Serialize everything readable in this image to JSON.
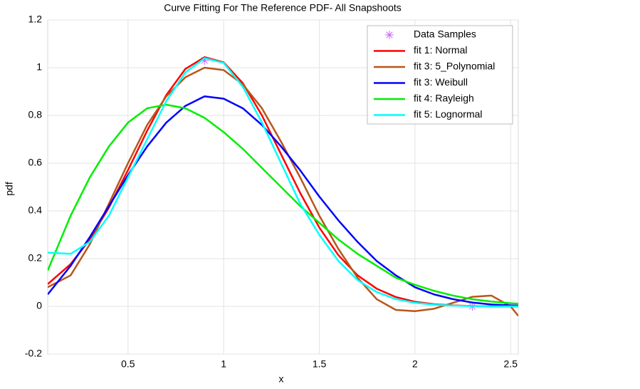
{
  "chart_data": {
    "type": "line",
    "title": "Curve Fitting For The Reference PDF- All Snapshoots",
    "xlabel": "x",
    "ylabel": "pdf",
    "xlim": [
      0.08,
      2.54
    ],
    "ylim": [
      -0.2,
      1.2
    ],
    "xticks": [
      0.5,
      1,
      1.5,
      2,
      2.5
    ],
    "yticks": [
      -0.2,
      0,
      0.2,
      0.4,
      0.6,
      0.8,
      1,
      1.2
    ],
    "grid": true,
    "legend": "upper right",
    "x": [
      0.08,
      0.2,
      0.3,
      0.4,
      0.5,
      0.6,
      0.7,
      0.8,
      0.9,
      1.0,
      1.1,
      1.2,
      1.3,
      1.4,
      1.5,
      1.6,
      1.7,
      1.8,
      1.9,
      2.0,
      2.1,
      2.2,
      2.3,
      2.4,
      2.5,
      2.54
    ],
    "series": [
      {
        "name": "Data Samples",
        "color": "#cc66ff",
        "style": "markers",
        "x": [
          0.9,
          2.3
        ],
        "values": [
          1.03,
          0.0
        ]
      },
      {
        "name": "fit 1: Normal",
        "color": "#ff0000",
        "values": [
          0.093,
          0.177,
          0.28,
          0.414,
          0.571,
          0.736,
          0.885,
          0.995,
          1.044,
          1.022,
          0.935,
          0.8,
          0.637,
          0.475,
          0.33,
          0.214,
          0.13,
          0.074,
          0.039,
          0.019,
          0.009,
          0.004,
          0.0015,
          0.0005,
          0,
          0
        ]
      },
      {
        "name": "fit 3: 5_Polynomial",
        "color": "#b8561b",
        "values": [
          0.08,
          0.13,
          0.26,
          0.43,
          0.6,
          0.76,
          0.88,
          0.96,
          1.0,
          0.99,
          0.93,
          0.83,
          0.69,
          0.54,
          0.38,
          0.24,
          0.12,
          0.03,
          -0.015,
          -0.02,
          -0.01,
          0.015,
          0.04,
          0.045,
          0.0,
          -0.04
        ]
      },
      {
        "name": "fit 3: Weibull",
        "color": "#0000ff",
        "values": [
          0.05,
          0.17,
          0.29,
          0.42,
          0.55,
          0.67,
          0.77,
          0.84,
          0.88,
          0.87,
          0.83,
          0.76,
          0.67,
          0.57,
          0.46,
          0.36,
          0.27,
          0.19,
          0.13,
          0.08,
          0.05,
          0.03,
          0.016,
          0.008,
          0.004,
          0.003
        ]
      },
      {
        "name": "fit 4: Rayleigh",
        "color": "#00ee00",
        "values": [
          0.15,
          0.38,
          0.54,
          0.67,
          0.77,
          0.83,
          0.845,
          0.83,
          0.79,
          0.73,
          0.66,
          0.58,
          0.5,
          0.42,
          0.35,
          0.28,
          0.22,
          0.17,
          0.12,
          0.09,
          0.065,
          0.045,
          0.03,
          0.02,
          0.013,
          0.011
        ]
      },
      {
        "name": "fit 5: Lognormal",
        "color": "#00ffff",
        "values": [
          0.225,
          0.22,
          0.27,
          0.38,
          0.54,
          0.7,
          0.86,
          0.98,
          1.04,
          1.02,
          0.92,
          0.77,
          0.6,
          0.43,
          0.3,
          0.19,
          0.11,
          0.06,
          0.03,
          0.015,
          0.007,
          0.003,
          0.001,
          0,
          0,
          0
        ]
      }
    ]
  }
}
